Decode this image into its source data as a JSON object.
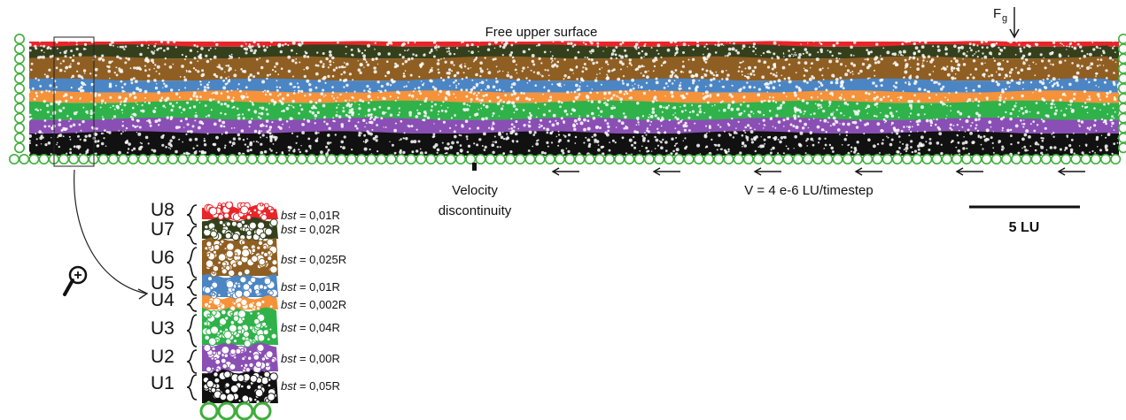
{
  "labels": {
    "surface": "Free upper surface",
    "force_main": "F",
    "force_sub": "g",
    "velocity_line1": "Velocity",
    "velocity_line2": "discontinuity",
    "speed": "V = 4 e-6 LU/timestep",
    "scale": "5 LU"
  },
  "units": [
    {
      "name": "U8",
      "bst_prefix": "bst",
      "bst_value": " = 0,01R",
      "color": "#e8262a"
    },
    {
      "name": "U7",
      "bst_prefix": "bst",
      "bst_value": " = 0,02R",
      "color": "#34401c"
    },
    {
      "name": "U6",
      "bst_prefix": "bst",
      "bst_value": " = 0,025R",
      "color": "#8f5e22"
    },
    {
      "name": "U5",
      "bst_prefix": "bst",
      "bst_value": " = 0,01R",
      "color": "#4b85c4"
    },
    {
      "name": "U4",
      "bst_prefix": "bst",
      "bst_value": " = 0,002R",
      "color": "#f5923a"
    },
    {
      "name": "U3",
      "bst_prefix": "bst",
      "bst_value": " = 0,04R",
      "color": "#2fb24a"
    },
    {
      "name": "U2",
      "bst_prefix": "bst",
      "bst_value": " = 0,00R",
      "color": "#8a4fb4"
    },
    {
      "name": "U1",
      "bst_prefix": "bst",
      "bst_value": " = 0,05R",
      "color": "#111111"
    }
  ],
  "colors": {
    "boundary": "#3fae3c",
    "arrow": "#111111"
  },
  "icons": {
    "magnifier": "zoom-in-icon"
  }
}
